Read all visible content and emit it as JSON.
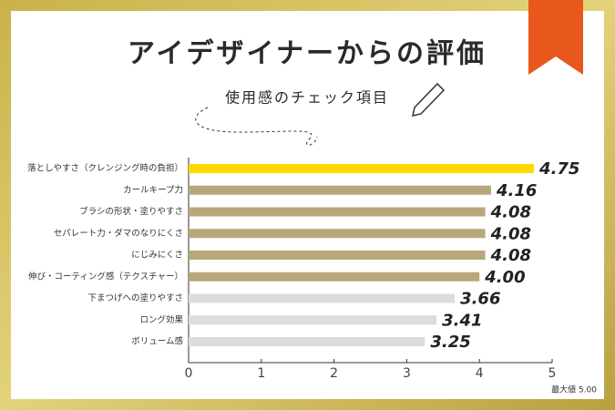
{
  "chart_data": {
    "type": "bar",
    "orientation": "horizontal",
    "title": "アイデザイナーからの評価",
    "subtitle": "使用感のチェック項目",
    "note": "最大値 5.00",
    "categories": [
      "落としやすさ（クレンジング時の負担）",
      "カールキープ力",
      "ブラシの形状・塗りやすさ",
      "セパレート力・ダマのなりにくさ",
      "にじみにくさ",
      "伸び・コーティング感（テクスチャー）",
      "下まつげへの塗りやすさ",
      "ロング効果",
      "ボリューム感"
    ],
    "values": [
      4.75,
      4.16,
      4.08,
      4.08,
      4.08,
      4.0,
      3.66,
      3.41,
      3.25
    ],
    "value_labels": [
      "4.75",
      "4.16",
      "4.08",
      "4.08",
      "4.08",
      "4.00",
      "3.66",
      "3.41",
      "3.25"
    ],
    "colors": [
      "#ffd800",
      "#b8a77b",
      "#b8a77b",
      "#b8a77b",
      "#b8a77b",
      "#b8a77b",
      "#dcdcdc",
      "#dcdcdc",
      "#dcdcdc"
    ],
    "xlim": [
      0,
      5
    ],
    "xticks": [
      0,
      1,
      2,
      3,
      4,
      5
    ]
  }
}
